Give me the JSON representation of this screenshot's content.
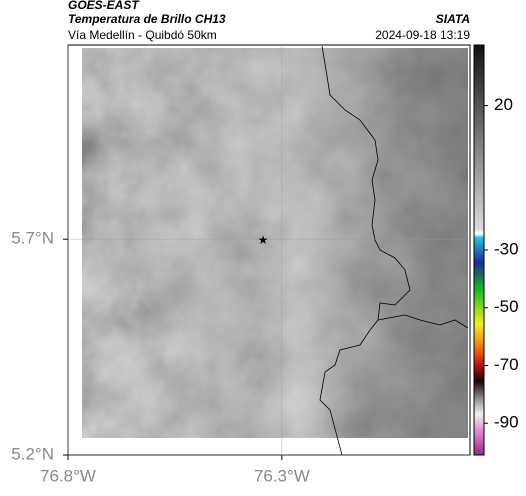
{
  "header": {
    "title": "GOES-EAST",
    "subtitle": "Temperatura de Brillo CH13",
    "source": "SIATA",
    "route": "Vía Medellín - Quibdó 50km",
    "timestamp": "2024-09-18 13:19"
  },
  "map": {
    "xlim": [
      -76.8,
      -75.86
    ],
    "ylim": [
      5.2,
      6.15
    ],
    "xticks": [
      {
        "value": -76.8,
        "label": "76.8°W"
      },
      {
        "value": -76.3,
        "label": "76.3°W"
      }
    ],
    "yticks": [
      {
        "value": 5.2,
        "label": "5.2°N"
      },
      {
        "value": 5.7,
        "label": "5.7°N"
      }
    ],
    "colorbar": {
      "lim": [
        41,
        -101
      ],
      "ticks": [
        20,
        -30,
        -50,
        -70,
        -90
      ]
    }
  }
}
